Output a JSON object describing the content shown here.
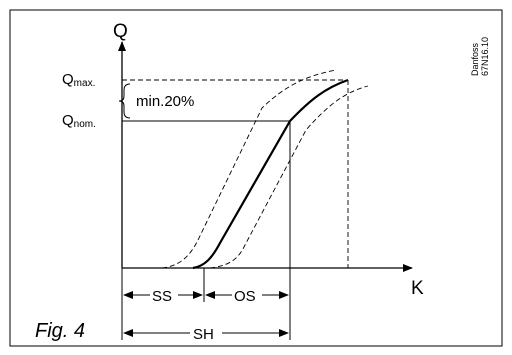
{
  "axes": {
    "y_label": "Q",
    "x_label": "K"
  },
  "q_max": {
    "main": "Q",
    "sub": "max."
  },
  "q_nom": {
    "main": "Q",
    "sub": "nom."
  },
  "min_percent": "min.20%",
  "dimensions": {
    "ss": "SS",
    "os": "OS",
    "sh": "SH"
  },
  "figure_caption": "Fig. 4",
  "code": {
    "line1": "Danfoss",
    "line2": "67N16.10"
  }
}
